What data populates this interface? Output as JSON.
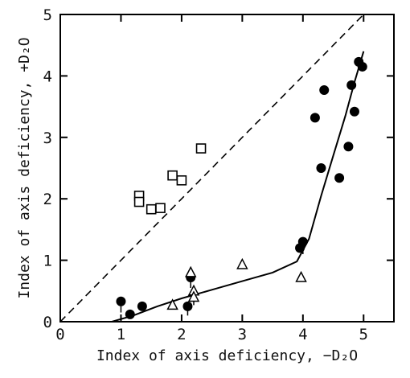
{
  "chart_data": {
    "type": "scatter",
    "title": "",
    "xlabel": "Index of axis deficiency, −D₂O",
    "ylabel": "Index of axis deficiency, +D₂O",
    "xlim": [
      0,
      5.5
    ],
    "ylim": [
      0,
      5
    ],
    "xticks": [
      "0",
      "1",
      "2",
      "3",
      "4",
      "5"
    ],
    "yticks": [
      "0",
      "1",
      "2",
      "3",
      "4",
      "5"
    ],
    "grid": false,
    "legend": "none",
    "series": [
      {
        "marker": "open-square",
        "points": [
          [
            1.3,
            2.05
          ],
          [
            1.3,
            1.95
          ],
          [
            1.5,
            1.83
          ],
          [
            1.65,
            1.85
          ],
          [
            1.85,
            2.38
          ],
          [
            2.0,
            2.3
          ],
          [
            2.32,
            2.82
          ]
        ]
      },
      {
        "marker": "filled-circle",
        "points": [
          [
            1.0,
            0.33
          ],
          [
            1.15,
            0.12
          ],
          [
            1.35,
            0.25
          ],
          [
            2.1,
            0.25
          ],
          [
            2.15,
            0.72
          ],
          [
            3.95,
            1.2
          ],
          [
            4.0,
            1.3
          ],
          [
            4.2,
            3.32
          ],
          [
            4.35,
            3.77
          ],
          [
            4.3,
            2.5
          ],
          [
            4.6,
            2.34
          ],
          [
            4.75,
            2.85
          ],
          [
            4.8,
            3.85
          ],
          [
            4.85,
            3.42
          ],
          [
            4.92,
            4.23
          ],
          [
            4.98,
            4.15
          ]
        ]
      },
      {
        "marker": "open-triangle",
        "points": [
          [
            1.85,
            0.27
          ],
          [
            2.15,
            0.8
          ],
          [
            2.2,
            0.5
          ],
          [
            2.2,
            0.4
          ],
          [
            3.0,
            0.93
          ],
          [
            3.97,
            0.72
          ]
        ]
      }
    ],
    "error_bars": [
      {
        "x": 1.0,
        "y_low": 0.15,
        "y_high": 0.33
      },
      {
        "x": 2.15,
        "y_low": 0.55,
        "y_high": 0.72
      },
      {
        "x": 2.1,
        "y_low": 0.1,
        "y_high": 0.25
      },
      {
        "x": 2.2,
        "y_low": 0.27,
        "y_high": 0.5
      },
      {
        "x": 4.0,
        "y_low": 1.1,
        "y_high": 1.3
      }
    ],
    "fitted_curve": [
      [
        0.85,
        0.0
      ],
      [
        1.2,
        0.1
      ],
      [
        1.6,
        0.25
      ],
      [
        2.0,
        0.38
      ],
      [
        2.5,
        0.52
      ],
      [
        3.0,
        0.66
      ],
      [
        3.5,
        0.8
      ],
      [
        3.9,
        0.98
      ],
      [
        4.1,
        1.35
      ],
      [
        4.3,
        2.05
      ],
      [
        4.5,
        2.7
      ],
      [
        4.7,
        3.35
      ],
      [
        4.85,
        3.9
      ],
      [
        5.0,
        4.4
      ]
    ],
    "reference_line": [
      [
        0,
        0
      ],
      [
        5.5,
        5.5
      ]
    ]
  }
}
